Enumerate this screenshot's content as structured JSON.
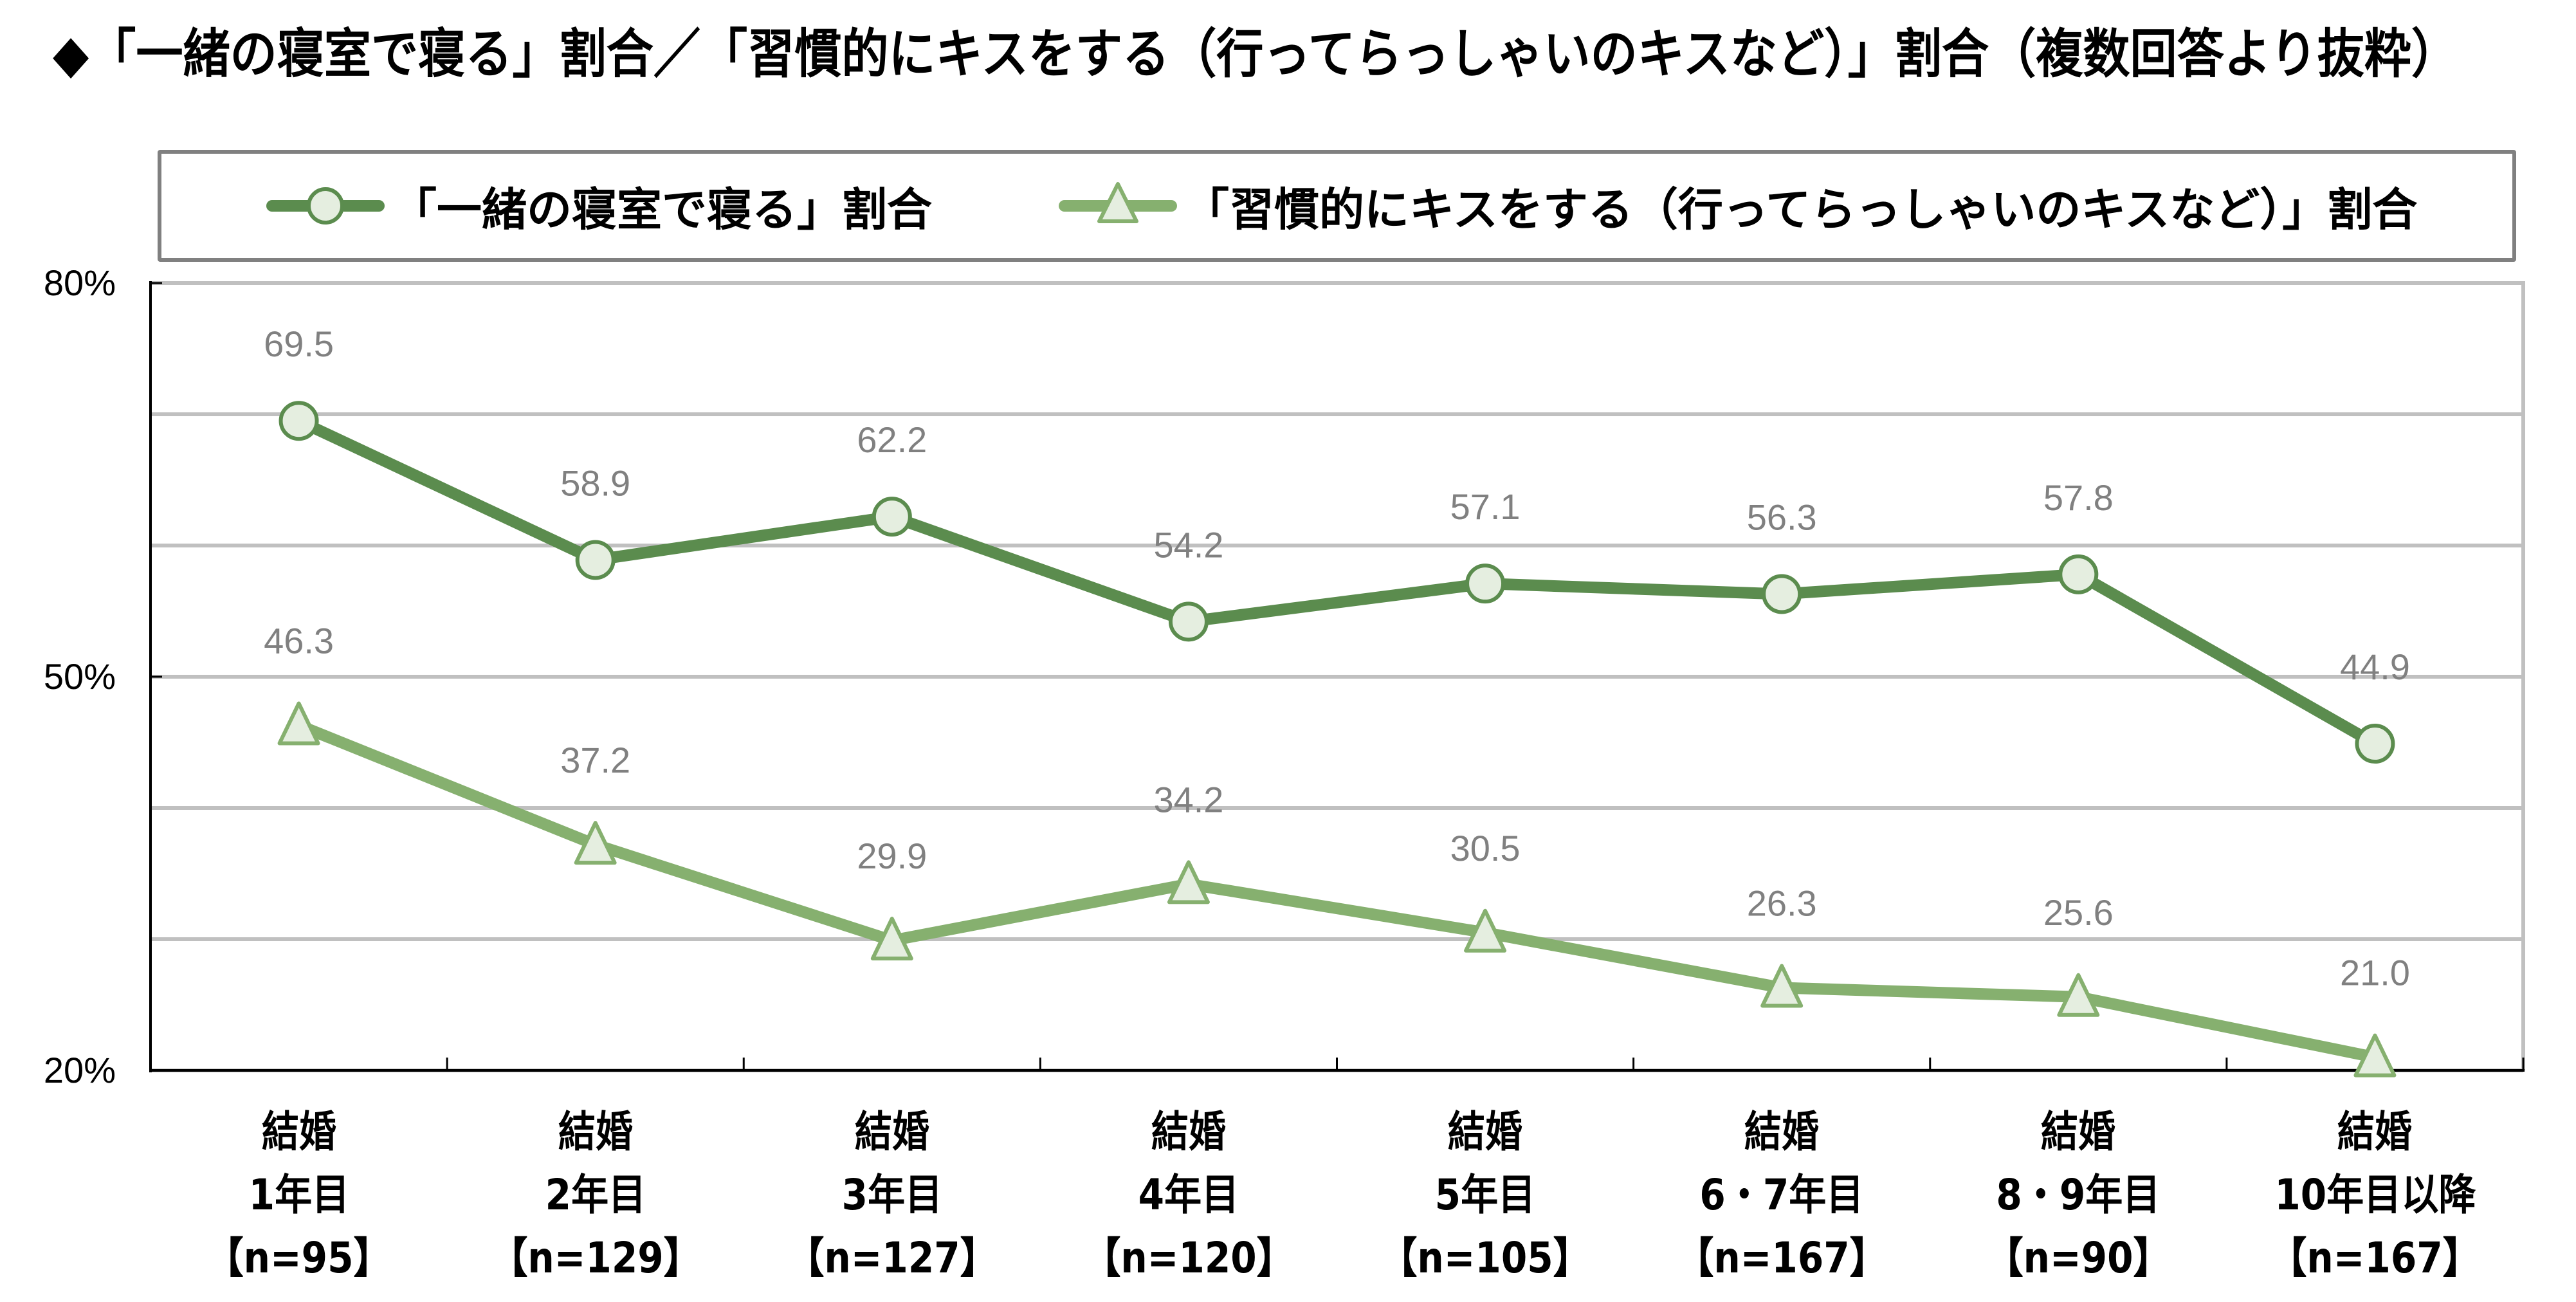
{
  "title": "◆「一緒の寝室で寝る」割合／「習慣的にキスをする（行ってらっしゃいのキスなど）」割合（複数回答より抜粋）",
  "colors": {
    "series1_line": "#5B8C4E",
    "series2_line": "#86B06F",
    "marker_fill": "#E5EEE0",
    "gridline": "#C0C0C0",
    "data_label": "#808080",
    "legend_border": "#808080"
  },
  "chart_data": {
    "type": "line",
    "title": "◆「一緒の寝室で寝る」割合／「習慣的にキスをする（行ってらっしゃいのキスなど）」割合（複数回答より抜粋）",
    "categories": [
      {
        "line1": "結婚",
        "line2": "1年目",
        "line3": "【n=95】"
      },
      {
        "line1": "結婚",
        "line2": "2年目",
        "line3": "【n=129】"
      },
      {
        "line1": "結婚",
        "line2": "3年目",
        "line3": "【n=127】"
      },
      {
        "line1": "結婚",
        "line2": "4年目",
        "line3": "【n=120】"
      },
      {
        "line1": "結婚",
        "line2": "5年目",
        "line3": "【n=105】"
      },
      {
        "line1": "結婚",
        "line2": "6・7年目",
        "line3": "【n=167】"
      },
      {
        "line1": "結婚",
        "line2": "8・9年目",
        "line3": "【n=90】"
      },
      {
        "line1": "結婚",
        "line2": "10年目以降",
        "line3": "【n=167】"
      }
    ],
    "series": [
      {
        "name": "「一緒の寝室で寝る」割合",
        "marker": "circle",
        "values": [
          69.5,
          58.9,
          62.2,
          54.2,
          57.1,
          56.3,
          57.8,
          44.9
        ],
        "labels": [
          "69.5",
          "58.9",
          "62.2",
          "54.2",
          "57.1",
          "56.3",
          "57.8",
          "44.9"
        ]
      },
      {
        "name": "「習慣的にキスをする（行ってらっしゃいのキスなど）」割合",
        "marker": "triangle",
        "values": [
          46.3,
          37.2,
          29.9,
          34.2,
          30.5,
          26.3,
          25.6,
          21.0
        ],
        "labels": [
          "46.3",
          "37.2",
          "29.9",
          "34.2",
          "30.5",
          "26.3",
          "25.6",
          "21.0"
        ]
      }
    ],
    "xlabel": "",
    "ylabel": "",
    "ylim": [
      20,
      80
    ],
    "y_ticks": [
      {
        "value": 80,
        "label": "80%"
      },
      {
        "value": 50,
        "label": "50%"
      },
      {
        "value": 20,
        "label": "20%"
      }
    ],
    "gridline_step": 10,
    "grid": true,
    "legend_position": "top"
  }
}
